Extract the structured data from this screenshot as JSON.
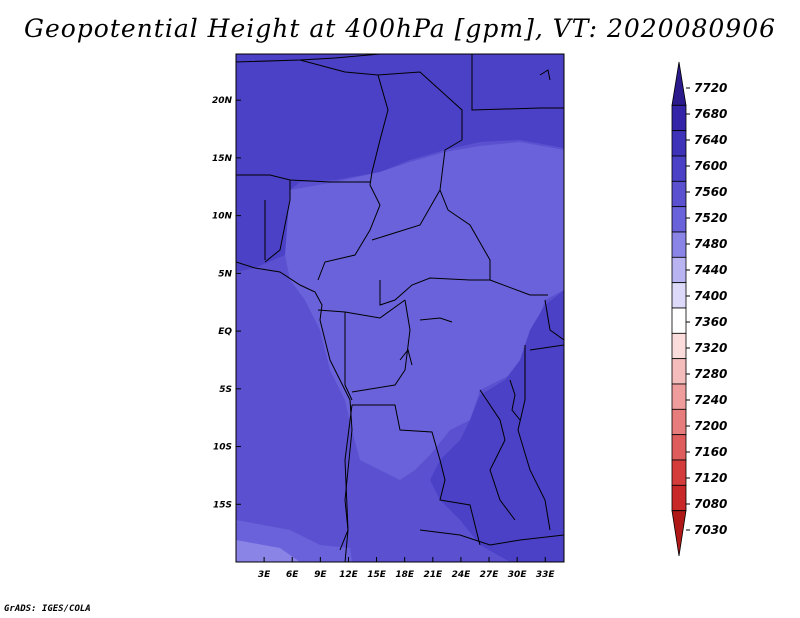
{
  "title": "Geopotential Height at 400hPa [gpm], VT: 2020080906",
  "credit": "GrADS: IGES/COLA",
  "map": {
    "lon_range": [
      0,
      35
    ],
    "lat_range": [
      -20,
      24
    ],
    "lon_ticks": [
      "3E",
      "6E",
      "9E",
      "12E",
      "15E",
      "18E",
      "21E",
      "24E",
      "27E",
      "30E",
      "33E"
    ],
    "lat_ticks": [
      "20N",
      "15N",
      "10N",
      "5N",
      "EQ",
      "5S",
      "10S",
      "15S"
    ]
  },
  "colorbar": {
    "labels": [
      "7720",
      "7680",
      "7640",
      "7600",
      "7560",
      "7520",
      "7480",
      "7440",
      "7400",
      "7360",
      "7320",
      "7280",
      "7240",
      "7200",
      "7160",
      "7120",
      "7080",
      "7030"
    ],
    "colors": [
      "#2a1a8c",
      "#3424a8",
      "#3e32b8",
      "#4b41c6",
      "#5b51d0",
      "#6a62da",
      "#8a84e6",
      "#b8b4f2",
      "#dcdaf8",
      "#ffffff",
      "#fbdcdc",
      "#f5bcbc",
      "#ee9c9c",
      "#e67c7c",
      "#de5c5c",
      "#d43c3c",
      "#c82828",
      "#b01818"
    ]
  }
}
